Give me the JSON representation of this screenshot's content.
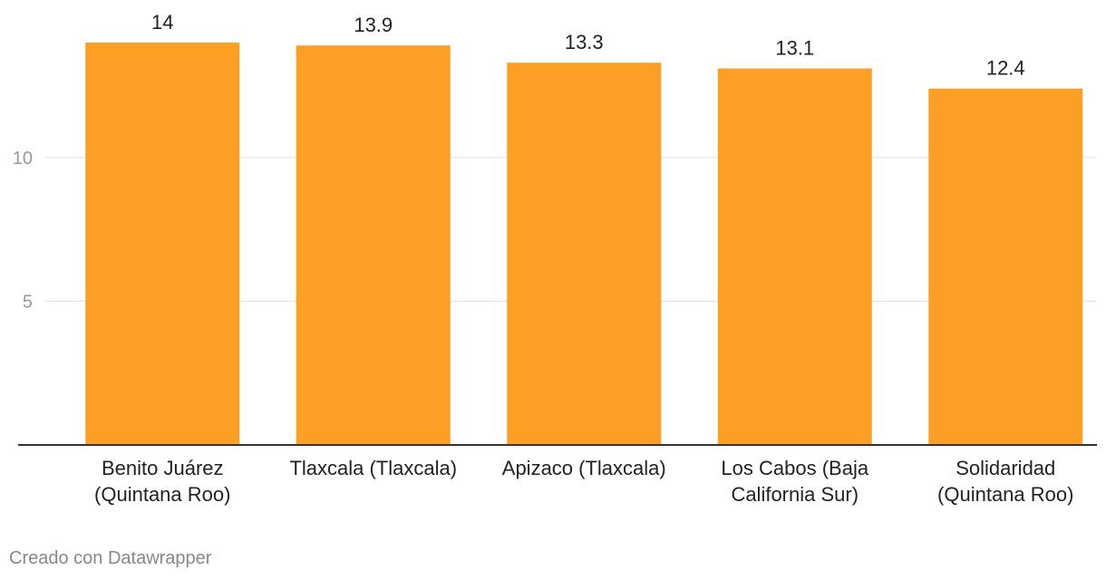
{
  "chart_data": {
    "type": "bar",
    "categories": [
      [
        "Benito Juárez",
        "(Quintana Roo)"
      ],
      [
        "Tlaxcala (Tlaxcala)"
      ],
      [
        "Apizaco (Tlaxcala)"
      ],
      [
        "Los Cabos (Baja",
        "California Sur)"
      ],
      [
        "Solidaridad",
        "(Quintana Roo)"
      ]
    ],
    "values": [
      14,
      13.9,
      13.3,
      13.1,
      12.4
    ],
    "value_labels": [
      "14",
      "13.9",
      "13.3",
      "13.1",
      "12.4"
    ],
    "yticks": [
      5,
      10
    ],
    "ylim": [
      0,
      14.6
    ],
    "grid": true,
    "bar_color": "#fe9f25"
  },
  "footer": {
    "credit": "Creado con Datawrapper"
  }
}
